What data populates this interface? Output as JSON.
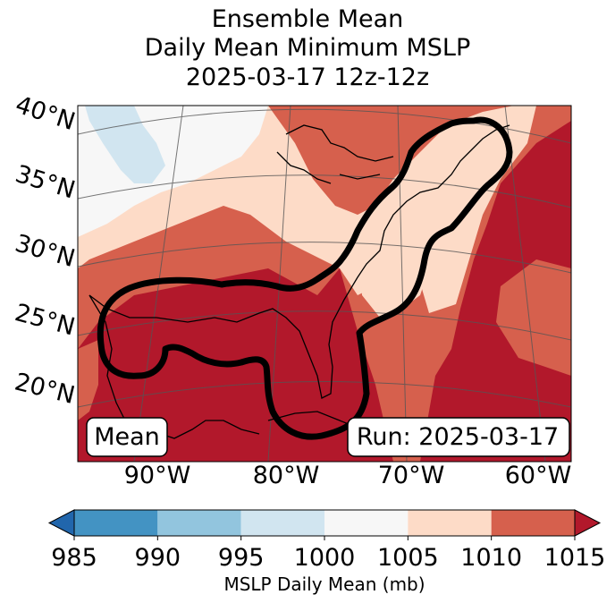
{
  "chart_data": {
    "type": "heatmap",
    "title_lines": [
      "Ensemble Mean",
      "Daily Mean Minimum MSLP",
      "2025-03-17 12z-12z"
    ],
    "lat_labels": [
      "40°N",
      "35°N",
      "30°N",
      "25°N",
      "20°N"
    ],
    "lon_labels": [
      "90°W",
      "80°W",
      "70°W",
      "60°W"
    ],
    "colorbar": {
      "label": "MSLP Daily Mean (mb)",
      "ticks": [
        "985",
        "990",
        "995",
        "1000",
        "1005",
        "1010",
        "1015"
      ],
      "bins": [
        {
          "lo": 985,
          "hi": 990,
          "color": "#4393c3"
        },
        {
          "lo": 990,
          "hi": 995,
          "color": "#92c5de"
        },
        {
          "lo": 995,
          "hi": 1000,
          "color": "#d1e5f0"
        },
        {
          "lo": 1000,
          "hi": 1005,
          "color": "#f7f7f7"
        },
        {
          "lo": 1005,
          "hi": 1010,
          "color": "#fddbc7"
        },
        {
          "lo": 1010,
          "hi": 1015,
          "color": "#d6604d"
        }
      ],
      "under_color": "#2166ac",
      "over_color": "#b2182b",
      "extend": "both"
    },
    "annotations": {
      "mean": "Mean",
      "run": "Run: 2025-03-17"
    },
    "contour_color": "#000000"
  }
}
